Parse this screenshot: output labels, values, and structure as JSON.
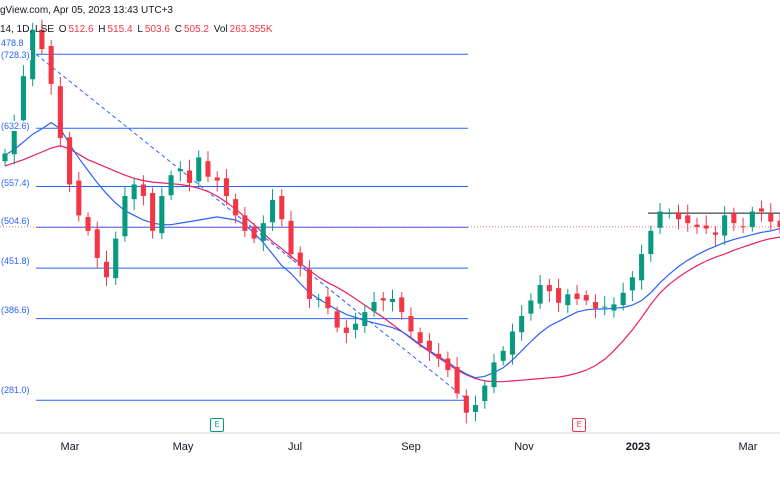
{
  "header": {
    "source_line": "gView.com, Apr 05, 2023 13:43 UTC+3",
    "ticker_partial": "14, 1D, LSE",
    "open_key": "O",
    "open": "512.6",
    "high_key": "H",
    "high": "515.4",
    "low_key": "L",
    "low": "503.6",
    "close_key": "C",
    "close": "505.2",
    "vol_key": "Vol",
    "volume": "263.355K",
    "extra_value": "478.8"
  },
  "fib_labels": [
    "(728.3)",
    "(632.6)",
    "(557.4)",
    "(504.6)",
    "(451.8)",
    "(386.6)",
    "(281.0)"
  ],
  "events": [
    {
      "letter": "E",
      "kind": "earnings"
    },
    {
      "letter": "E",
      "kind": "earnings-negative"
    }
  ],
  "colors": {
    "fib": "#2962ff",
    "up": "#089981",
    "down": "#f23645",
    "ma_short": "#2962ff",
    "ma_long": "#e91e63",
    "resistance": "#131722",
    "price_line": "#f23645"
  },
  "chart_data": {
    "type": "candlestick",
    "x_axis_labels": [
      "Mar",
      "May",
      "Jul",
      "Sep",
      "Nov",
      "2023",
      "Mar"
    ],
    "fib_levels": [
      728.3,
      632.6,
      557.4,
      504.6,
      451.8,
      386.6,
      281.0
    ],
    "price_range": [
      240,
      770
    ],
    "last_close": 505.2,
    "resistance_level": 523,
    "close_series": [
      600,
      640,
      700,
      760,
      735,
      690,
      620,
      560,
      520,
      500,
      465,
      440,
      490,
      545,
      560,
      545,
      500,
      545,
      572,
      580,
      562,
      595,
      570,
      565,
      545,
      520,
      500,
      490,
      510,
      540,
      515,
      470,
      455,
      412,
      412,
      400,
      375,
      368,
      380,
      395,
      408,
      410,
      412,
      395,
      370,
      355,
      345,
      335,
      320,
      290,
      265,
      275,
      300,
      330,
      345,
      370,
      390,
      410,
      430,
      422,
      407,
      418,
      412,
      410,
      400,
      402,
      405,
      420,
      440,
      470,
      500,
      525,
      523,
      515,
      510,
      505,
      503,
      495,
      520,
      510,
      505,
      525,
      525,
      512,
      505
    ],
    "ma_short_series": [
      598,
      605,
      615,
      625,
      632,
      640,
      632,
      612,
      594,
      578,
      562,
      548,
      536,
      526,
      520,
      514,
      510,
      508,
      508,
      510,
      512,
      514,
      516,
      518,
      516,
      514,
      508,
      497,
      485,
      470,
      455,
      445,
      432,
      420,
      412,
      405,
      398,
      392,
      388,
      384,
      381,
      378,
      375,
      370,
      362,
      353,
      345,
      338,
      330,
      322,
      315,
      310,
      312,
      317,
      323,
      333,
      345,
      357,
      368,
      377,
      383,
      389,
      395,
      398,
      399,
      399,
      400,
      401,
      404,
      410,
      420,
      433,
      444,
      454,
      462,
      469,
      475,
      480,
      485,
      489,
      492,
      495,
      498,
      500,
      503
    ],
    "ma_long_series": [
      584,
      588,
      592,
      597,
      602,
      607,
      610,
      606,
      599,
      592,
      587,
      582,
      577,
      572,
      568,
      565,
      563,
      562,
      561,
      560,
      558,
      555,
      551,
      545,
      537,
      528,
      518,
      508,
      497,
      486,
      477,
      467,
      458,
      449,
      440,
      433,
      427,
      420,
      412,
      404,
      396,
      388,
      379,
      370,
      361,
      352,
      344,
      336,
      328,
      320,
      314,
      309,
      306,
      305,
      305,
      306,
      307,
      308,
      309,
      310,
      311,
      313,
      316,
      320,
      326,
      334,
      345,
      358,
      372,
      388,
      405,
      420,
      431,
      440,
      448,
      455,
      461,
      466,
      470,
      475,
      479,
      483,
      487,
      490,
      492
    ]
  }
}
